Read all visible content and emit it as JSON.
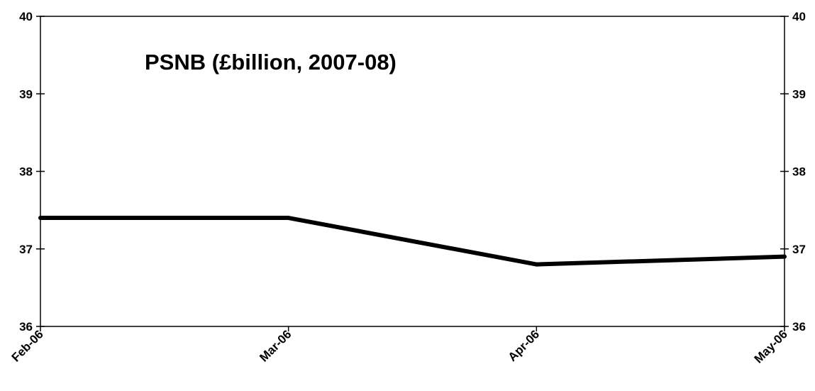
{
  "chart_data": {
    "type": "line",
    "title": "PSNB (£billion, 2007-08)",
    "categories": [
      "Feb-06",
      "Mar-06",
      "Apr-06",
      "May-06"
    ],
    "series": [
      {
        "values": [
          37.4,
          37.4,
          36.8,
          36.9
        ]
      }
    ],
    "ylim": [
      36,
      40
    ],
    "yticks": [
      "36",
      "37",
      "38",
      "39",
      "40"
    ],
    "y_axis_sides": [
      "left",
      "right"
    ],
    "grid": false,
    "legend": "none",
    "line_color": "#000000"
  }
}
